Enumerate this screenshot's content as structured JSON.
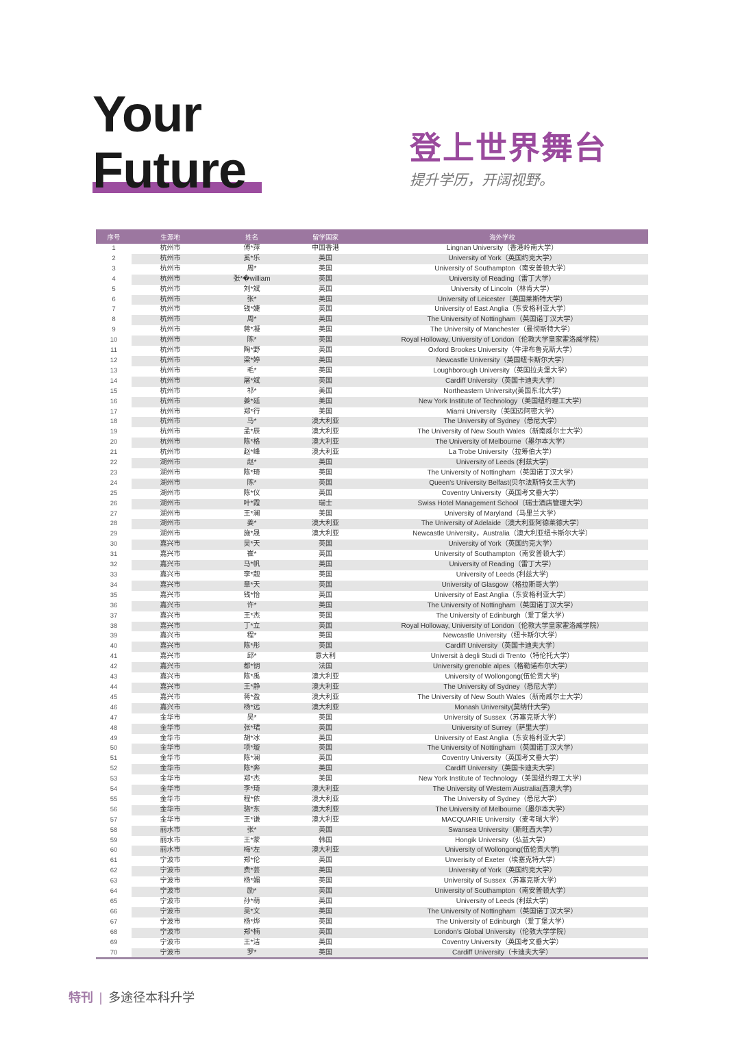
{
  "heading": {
    "line1": "Your",
    "line2": "Future",
    "cn_title": "登上世界舞台",
    "cn_subtitle": "提升学历，开阔视野。",
    "accent_color": "#9c4d9f"
  },
  "table": {
    "headers": [
      "序号",
      "生源地",
      "姓名",
      "留学国家",
      "海外学校"
    ],
    "header_color": "#9c77a0",
    "rows": [
      [
        "1",
        "杭州市",
        "傅*萍",
        "中国香港",
        "Lingnan University（香港岭南大学）"
      ],
      [
        "2",
        "杭州市",
        "奚*乐",
        "英国",
        "University of York（英国约克大学）"
      ],
      [
        "3",
        "杭州市",
        "周*",
        "英国",
        "University of Southampton（南安普顿大学）"
      ],
      [
        "4",
        "杭州市",
        "张*�william",
        "英国",
        "University of Reading（雷丁大学）"
      ],
      [
        "5",
        "杭州市",
        "刘*斌",
        "英国",
        "University of Lincoln（林肯大学）"
      ],
      [
        "6",
        "杭州市",
        "张*",
        "英国",
        "University of Leicester（英国莱斯特大学）"
      ],
      [
        "7",
        "杭州市",
        "钱*婕",
        "英国",
        "University of East Anglia（东安格利亚大学）"
      ],
      [
        "8",
        "杭州市",
        "周*",
        "英国",
        "The University of Nottingham（英国诺丁汉大学）"
      ],
      [
        "9",
        "杭州市",
        "蒋*凝",
        "英国",
        "The University of Manchester（曼彻斯特大学）"
      ],
      [
        "10",
        "杭州市",
        "陈*",
        "英国",
        "Royal Holloway, University of London（伦敦大学皇家霍洛威学院）"
      ],
      [
        "11",
        "杭州市",
        "陶*野",
        "英国",
        "Oxford Brookes University（牛津布鲁克斯大学）"
      ],
      [
        "12",
        "杭州市",
        "梁*婷",
        "英国",
        "Newcastle University（英国纽卡斯尔大学）"
      ],
      [
        "13",
        "杭州市",
        "毛*",
        "英国",
        "Loughborough University（英国拉夫堡大学）"
      ],
      [
        "14",
        "杭州市",
        "屠*斌",
        "英国",
        "Cardiff University（英国卡迪夫大学）"
      ],
      [
        "15",
        "杭州市",
        "祁*",
        "美国",
        "Northeastern University(美国东北大学)"
      ],
      [
        "16",
        "杭州市",
        "姜*廷",
        "美国",
        "New York Institute of Technology（美国纽约理工大学）"
      ],
      [
        "17",
        "杭州市",
        "郑*行",
        "美国",
        "Miami University（美国迈阿密大学）"
      ],
      [
        "18",
        "杭州市",
        "马*",
        "澳大利亚",
        "The University of Sydney（悉尼大学）"
      ],
      [
        "19",
        "杭州市",
        "孟*辰",
        "澳大利亚",
        "The University of New South Wales（新南威尔士大学）"
      ],
      [
        "20",
        "杭州市",
        "陈*格",
        "澳大利亚",
        "The University of Melbourne（墨尔本大学）"
      ],
      [
        "21",
        "杭州市",
        "赵*峰",
        "澳大利亚",
        "La Trobe University（拉筹伯大学）"
      ],
      [
        "22",
        "湖州市",
        "赵*",
        "英国",
        "University of Leeds (利兹大学)"
      ],
      [
        "23",
        "湖州市",
        "陈*琦",
        "英国",
        "The University of Nottingham（英国诺丁汉大学）"
      ],
      [
        "24",
        "湖州市",
        "陈*",
        "英国",
        "Queen's University Belfast(贝尔法斯特女王大学)"
      ],
      [
        "25",
        "湖州市",
        "陈*仪",
        "英国",
        "Coventry University（英国考文垂大学）"
      ],
      [
        "26",
        "湖州市",
        "叶*霞",
        "瑞士",
        "Swiss Hotel Management School（瑞士酒店管理大学）"
      ],
      [
        "27",
        "湖州市",
        "王*澜",
        "美国",
        "University of Maryland（马里兰大学）"
      ],
      [
        "28",
        "湖州市",
        "姜*",
        "澳大利亚",
        "The University of Adelaide（澳大利亚阿德莱德大学）"
      ],
      [
        "29",
        "湖州市",
        "施*晟",
        "澳大利亚",
        "Newcastle University，Australia（澳大利亚纽卡斯尔大学）"
      ],
      [
        "30",
        "嘉兴市",
        "吴*天",
        "英国",
        "University of York（英国约克大学）"
      ],
      [
        "31",
        "嘉兴市",
        "崔*",
        "英国",
        "University of Southampton（南安普顿大学）"
      ],
      [
        "32",
        "嘉兴市",
        "马*帆",
        "英国",
        "University of Reading（雷丁大学）"
      ],
      [
        "33",
        "嘉兴市",
        "李*靓",
        "英国",
        "University of Leeds (利兹大学)"
      ],
      [
        "34",
        "嘉兴市",
        "章*天",
        "英国",
        "University of Glasgow（格拉斯哥大学）"
      ],
      [
        "35",
        "嘉兴市",
        "钱*怡",
        "英国",
        "University of East Anglia（东安格利亚大学）"
      ],
      [
        "36",
        "嘉兴市",
        "许*",
        "英国",
        "The University of Nottingham（英国诺丁汉大学）"
      ],
      [
        "37",
        "嘉兴市",
        "王*杰",
        "英国",
        "The University of Edinburgh（爱丁堡大学）"
      ],
      [
        "38",
        "嘉兴市",
        "丁*立",
        "英国",
        "Royal Holloway, University of London（伦敦大学皇家霍洛威学院）"
      ],
      [
        "39",
        "嘉兴市",
        "程*",
        "英国",
        "Newcastle University（纽卡斯尔大学）"
      ],
      [
        "40",
        "嘉兴市",
        "陈*彤",
        "英国",
        "Cardiff University（英国卡迪夫大学）"
      ],
      [
        "41",
        "嘉兴市",
        "邱*",
        "意大利",
        "Universit à degli Studi di Trento（特伦托大学）"
      ],
      [
        "42",
        "嘉兴市",
        "都*钥",
        "法国",
        "University grenoble alpes（格勒诺布尔大学）"
      ],
      [
        "43",
        "嘉兴市",
        "陈*禹",
        "澳大利亚",
        "University of Wollongong(伍伦贡大学)"
      ],
      [
        "44",
        "嘉兴市",
        "王*静",
        "澳大利亚",
        "The University of Sydney（悉尼大学）"
      ],
      [
        "45",
        "嘉兴市",
        "蒋*盈",
        "澳大利亚",
        "The University of New South Wales（新南威尔士大学）"
      ],
      [
        "46",
        "嘉兴市",
        "杨*远",
        "澳大利亚",
        "Monash University(莫纳什大学)"
      ],
      [
        "47",
        "金华市",
        "吴*",
        "英国",
        "University of Sussex（苏塞克斯大学）"
      ],
      [
        "48",
        "金华市",
        "张*珺",
        "英国",
        "University of Surrey（萨里大学）"
      ],
      [
        "49",
        "金华市",
        "胡*冰",
        "英国",
        "University of East Anglia（东安格利亚大学）"
      ],
      [
        "50",
        "金华市",
        "项*璇",
        "英国",
        "The University of Nottingham（英国诺丁汉大学）"
      ],
      [
        "51",
        "金华市",
        "陈*澜",
        "英国",
        "Coventry University（英国考文垂大学）"
      ],
      [
        "52",
        "金华市",
        "陈*奔",
        "英国",
        "Cardiff University（英国卡迪夫大学）"
      ],
      [
        "53",
        "金华市",
        "郑*杰",
        "美国",
        "New York Institute of Technology（美国纽约理工大学）"
      ],
      [
        "54",
        "金华市",
        "李*琦",
        "澳大利亚",
        "The University of Western Australia(西澳大学)"
      ],
      [
        "55",
        "金华市",
        "程*依",
        "澳大利亚",
        "The University of Sydney（悉尼大学）"
      ],
      [
        "56",
        "金华市",
        "骆*东",
        "澳大利亚",
        "The University of Melbourne（墨尔本大学）"
      ],
      [
        "57",
        "金华市",
        "王*谦",
        "澳大利亚",
        "MACQUARIE University（麦考瑞大学）"
      ],
      [
        "58",
        "丽水市",
        "张*",
        "英国",
        "Swansea University（斯旺西大学）"
      ],
      [
        "59",
        "丽水市",
        "王*蒙",
        "韩国",
        "Hongik University（弘益大学）"
      ],
      [
        "60",
        "丽水市",
        "梅*左",
        "澳大利亚",
        "University of Wollongong(伍伦贡大学)"
      ],
      [
        "61",
        "宁波市",
        "郑*伦",
        "英国",
        "Unverisity of Exeter（埃塞克特大学）"
      ],
      [
        "62",
        "宁波市",
        "费*芸",
        "英国",
        "University of York（英国约克大学）"
      ],
      [
        "63",
        "宁波市",
        "杨*媚",
        "英国",
        "University of Sussex（苏塞克斯大学）"
      ],
      [
        "64",
        "宁波市",
        "励*",
        "英国",
        "University of Southampton（南安普顿大学）"
      ],
      [
        "65",
        "宁波市",
        "孙*萌",
        "英国",
        "University of Leeds (利兹大学)"
      ],
      [
        "66",
        "宁波市",
        "吴*文",
        "英国",
        "The University of Nottingham（英国诺丁汉大学）"
      ],
      [
        "67",
        "宁波市",
        "杨*烨",
        "英国",
        "The University of Edinburgh（爱丁堡大学）"
      ],
      [
        "68",
        "宁波市",
        "郑*楠",
        "英国",
        "London's Global University（伦敦大学学院）"
      ],
      [
        "69",
        "宁波市",
        "王*洁",
        "英国",
        "Coventry University（英国考文垂大学）"
      ],
      [
        "70",
        "宁波市",
        "罗*",
        "英国",
        "Cardiff University（卡迪夫大学）"
      ]
    ]
  },
  "footer": {
    "tag": "特刊",
    "separator": "|",
    "text": "多途径本科升学"
  }
}
